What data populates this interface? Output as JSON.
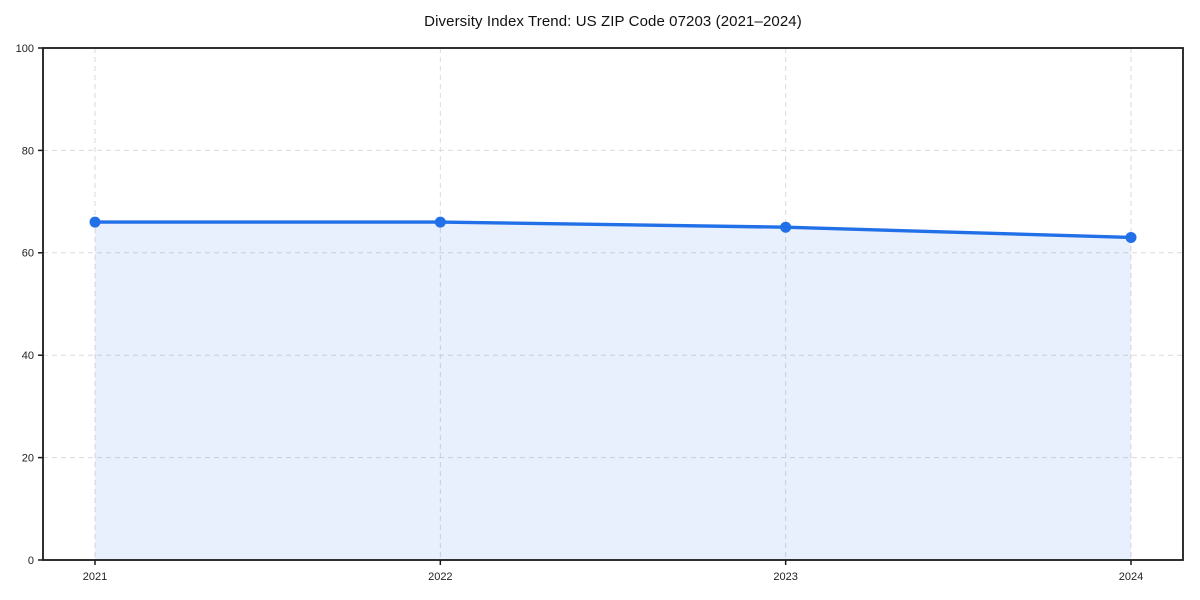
{
  "chart_data": {
    "type": "area",
    "title": "Diversity Index Trend: US ZIP Code 07203 (2021–2024)",
    "x": [
      "2021",
      "2022",
      "2023",
      "2024"
    ],
    "values": [
      66,
      66,
      65,
      63
    ],
    "xlabel": "",
    "ylabel": "",
    "ylim": [
      0,
      100
    ],
    "yticks": [
      0,
      20,
      40,
      60,
      80,
      100
    ],
    "grid": "dashed-both-axes",
    "legend_position": "none",
    "colors": {
      "line": "#2270e8",
      "marker": "#2270e8",
      "fill": "#2270e8",
      "fill_opacity": 0.1,
      "grid": "#dadada",
      "spine": "#1a1a1a",
      "tick_label": "#222222",
      "background": "#ffffff"
    }
  }
}
